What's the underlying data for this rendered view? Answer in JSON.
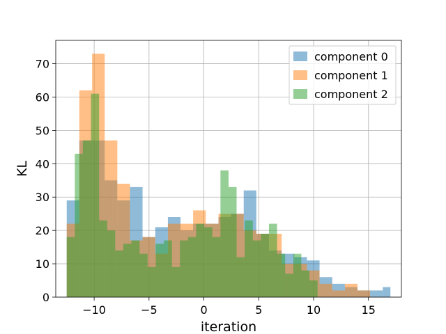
{
  "chart_data": {
    "type": "histogram",
    "xlabel": "iteration",
    "ylabel": "KL",
    "xlim": [
      -13.5,
      18.0
    ],
    "ylim": [
      0,
      77
    ],
    "xticks": [
      -10,
      -5,
      0,
      5,
      10,
      15
    ],
    "xtick_labels": [
      "−10",
      "−5",
      "0",
      "5",
      "10",
      "15"
    ],
    "yticks": [
      0,
      10,
      20,
      30,
      40,
      50,
      60,
      70
    ],
    "ytick_labels": [
      "0",
      "10",
      "20",
      "30",
      "40",
      "50",
      "60",
      "70"
    ],
    "grid": true,
    "legend_position": "top-right",
    "bar_alpha": 0.5,
    "series": [
      {
        "name": "component 0",
        "color": "#1f77b4",
        "bins": [
          [
            -12.5,
            -11.35,
            29
          ],
          [
            -11.35,
            -10.19,
            47
          ],
          [
            -10.19,
            -9.04,
            47
          ],
          [
            -9.04,
            -7.89,
            35
          ],
          [
            -7.89,
            -6.74,
            29
          ],
          [
            -6.74,
            -5.59,
            33
          ],
          [
            -5.59,
            -4.43,
            18
          ],
          [
            -4.43,
            -3.28,
            21
          ],
          [
            -3.28,
            -2.13,
            24
          ],
          [
            -2.13,
            -0.98,
            20
          ],
          [
            -0.98,
            0.17,
            22
          ],
          [
            0.17,
            1.33,
            22
          ],
          [
            1.33,
            2.48,
            24
          ],
          [
            2.48,
            3.63,
            25
          ],
          [
            3.63,
            4.78,
            32
          ],
          [
            4.78,
            5.93,
            19
          ],
          [
            5.93,
            7.09,
            14
          ],
          [
            7.09,
            8.24,
            13
          ],
          [
            8.24,
            9.39,
            12
          ],
          [
            9.39,
            10.54,
            11
          ],
          [
            10.54,
            11.7,
            6
          ],
          [
            11.7,
            12.85,
            4
          ],
          [
            12.85,
            14.0,
            3
          ],
          [
            14.0,
            15.15,
            2
          ],
          [
            15.15,
            16.3,
            2
          ],
          [
            16.3,
            17.0,
            3
          ]
        ]
      },
      {
        "name": "component 1",
        "color": "#ff7f0e",
        "bins": [
          [
            -12.5,
            -11.35,
            22
          ],
          [
            -11.35,
            -10.19,
            62
          ],
          [
            -10.19,
            -9.04,
            73
          ],
          [
            -9.04,
            -7.89,
            47
          ],
          [
            -7.89,
            -6.74,
            34
          ],
          [
            -6.74,
            -5.59,
            17
          ],
          [
            -5.59,
            -4.43,
            18
          ],
          [
            -4.43,
            -3.28,
            13
          ],
          [
            -3.28,
            -2.13,
            22
          ],
          [
            -2.13,
            -0.98,
            22
          ],
          [
            -0.98,
            0.17,
            26
          ],
          [
            0.17,
            1.33,
            22
          ],
          [
            1.33,
            2.48,
            25
          ],
          [
            2.48,
            3.63,
            25
          ],
          [
            3.63,
            4.78,
            20
          ],
          [
            4.78,
            5.93,
            19
          ],
          [
            5.93,
            7.09,
            19
          ],
          [
            7.09,
            8.24,
            10
          ],
          [
            8.24,
            9.39,
            10
          ],
          [
            9.39,
            10.54,
            8
          ],
          [
            10.54,
            11.7,
            4
          ],
          [
            11.7,
            12.85,
            2
          ],
          [
            12.85,
            14.0,
            4
          ],
          [
            14.0,
            15.15,
            2
          ]
        ]
      },
      {
        "name": "component 2",
        "color": "#2ca02c",
        "bins": [
          [
            -12.5,
            -11.76,
            18
          ],
          [
            -11.76,
            -11.03,
            43
          ],
          [
            -11.03,
            -10.29,
            47
          ],
          [
            -10.29,
            -9.55,
            61
          ],
          [
            -9.55,
            -8.81,
            23
          ],
          [
            -8.81,
            -8.08,
            20
          ],
          [
            -8.08,
            -7.34,
            14
          ],
          [
            -7.34,
            -6.6,
            16
          ],
          [
            -6.6,
            -5.86,
            17
          ],
          [
            -5.86,
            -5.13,
            13
          ],
          [
            -5.13,
            -4.39,
            9
          ],
          [
            -4.39,
            -3.65,
            16
          ],
          [
            -3.65,
            -2.91,
            17
          ],
          [
            -2.91,
            -2.18,
            9
          ],
          [
            -2.18,
            -1.44,
            17
          ],
          [
            -1.44,
            -0.7,
            18
          ],
          [
            -0.7,
            0.03,
            22
          ],
          [
            0.03,
            0.77,
            21
          ],
          [
            0.77,
            1.51,
            18
          ],
          [
            1.51,
            2.25,
            38
          ],
          [
            2.25,
            2.98,
            33
          ],
          [
            2.98,
            3.72,
            12
          ],
          [
            3.72,
            4.46,
            23
          ],
          [
            4.46,
            5.2,
            17
          ],
          [
            5.2,
            5.93,
            19
          ],
          [
            5.93,
            6.67,
            22
          ],
          [
            6.67,
            7.41,
            13
          ],
          [
            7.41,
            8.15,
            7
          ],
          [
            8.15,
            8.88,
            13
          ],
          [
            8.88,
            9.62,
            8
          ],
          [
            9.62,
            10.36,
            5
          ]
        ]
      }
    ]
  }
}
